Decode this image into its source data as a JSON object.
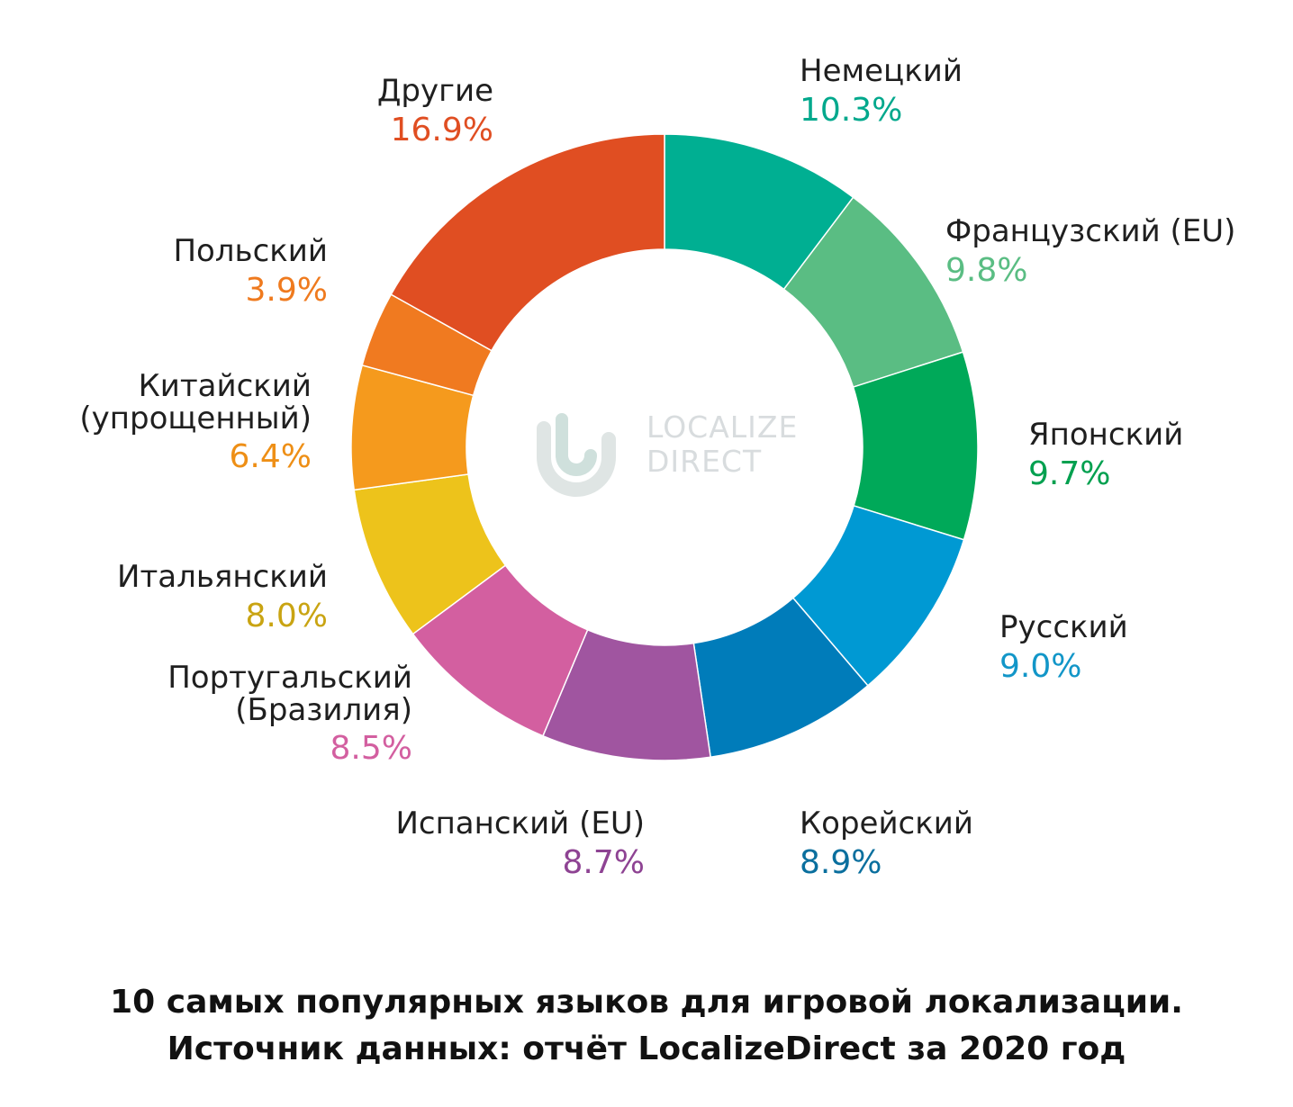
{
  "chart_data": {
    "type": "pie",
    "title": "",
    "categories": [
      "Немецкий",
      "Французский (EU)",
      "Японский",
      "Русский",
      "Корейский",
      "Испанский (EU)",
      "Португальский (Бразилия)",
      "Итальянский",
      "Китайский (упрощенный)",
      "Польский",
      "Другие"
    ],
    "values": [
      10.3,
      9.8,
      9.7,
      9.0,
      8.9,
      8.7,
      8.5,
      8.0,
      6.4,
      3.9,
      16.9
    ],
    "value_labels": [
      "10.3%",
      "9.8%",
      "9.7%",
      "9.0%",
      "8.9%",
      "8.7%",
      "8.5%",
      "8.0%",
      "6.4%",
      "3.9%",
      "16.9%"
    ],
    "colors": [
      "#00af92",
      "#5abd83",
      "#00a959",
      "#0099d3",
      "#007cba",
      "#a055a0",
      "#d35fa0",
      "#edc31b",
      "#f59a1d",
      "#f07a20",
      "#e04e22"
    ],
    "label_colors": [
      "#00a88c",
      "#5abd83",
      "#00a04f",
      "#1296c8",
      "#0a6f9e",
      "#8e4393",
      "#d35fa0",
      "#c9a412",
      "#ee8f16",
      "#ef7a1e",
      "#e04e22"
    ],
    "hole": "donut",
    "legend": "none"
  },
  "labels": [
    {
      "name": "Немецкий",
      "pct": "10.3%"
    },
    {
      "name": "Французский (EU)",
      "pct": "9.8%"
    },
    {
      "name": "Японский",
      "pct": "9.7%"
    },
    {
      "name": "Русский",
      "pct": "9.0%"
    },
    {
      "name": "Корейский",
      "pct": "8.9%"
    },
    {
      "name": "Испанский (EU)",
      "pct": "8.7%"
    },
    {
      "name": "Португальский\n(Бразилия)",
      "pct": "8.5%"
    },
    {
      "name": "Итальянский",
      "pct": "8.0%"
    },
    {
      "name": "Китайский\n(упрощенный)",
      "pct": "6.4%"
    },
    {
      "name": "Польский",
      "pct": "3.9%"
    },
    {
      "name": "Другие",
      "pct": "16.9%"
    }
  ],
  "watermark": {
    "line1": "LOCALIZE",
    "line2": "DIRECT",
    "color": "#d8dcde"
  },
  "caption": {
    "line1": "10 самых популярных языков для игровой локализации.",
    "line2": "Источник данных: отчёт LocalizeDirect за 2020 год"
  }
}
